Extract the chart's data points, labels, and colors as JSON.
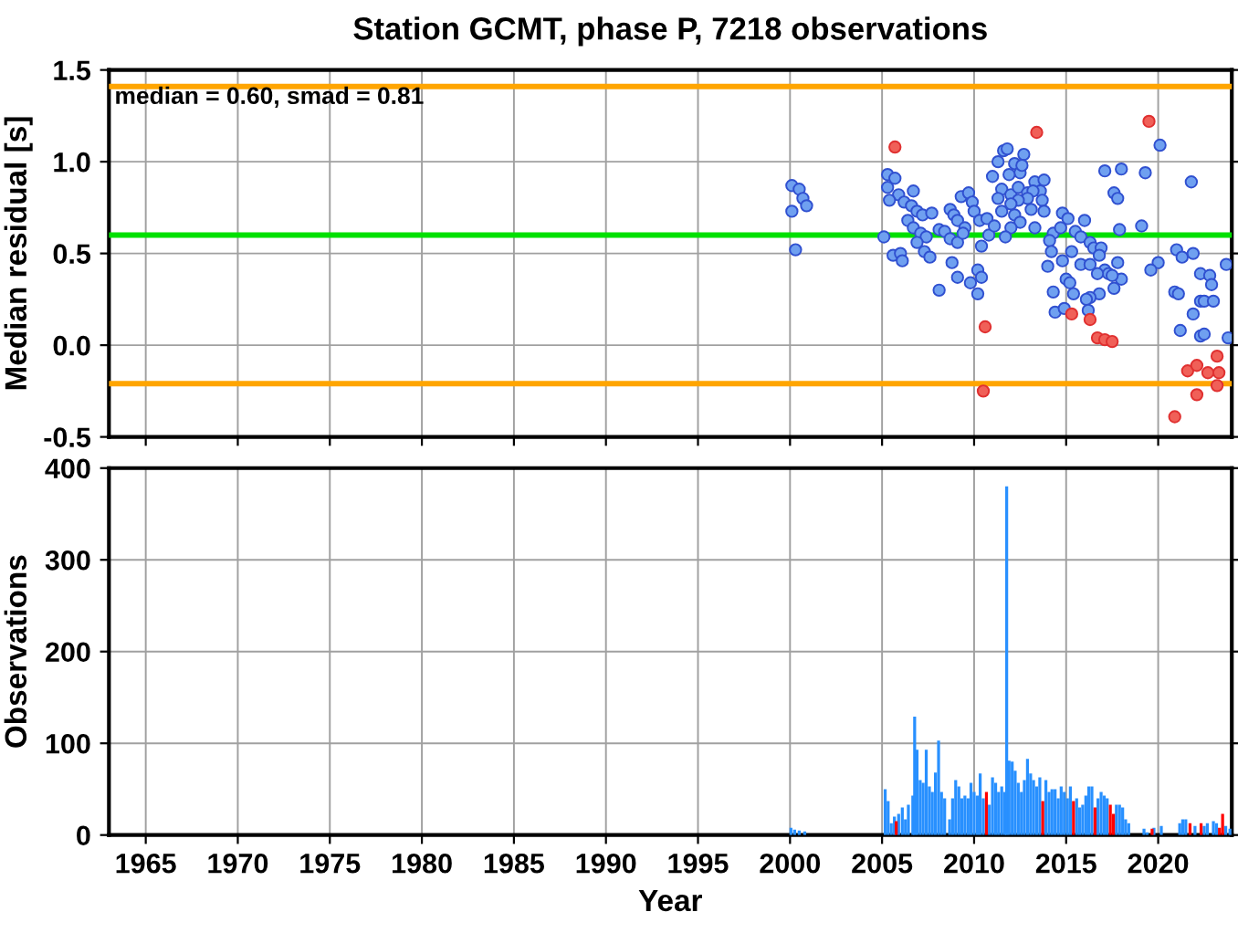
{
  "chart_data": [
    {
      "type": "scatter",
      "title": "Station GCMT, phase P, 7218 observations",
      "ylabel": "Median residual [s]",
      "xlim": [
        1963,
        2024
      ],
      "xticks": [
        1965,
        1970,
        1975,
        1980,
        1985,
        1990,
        1995,
        2000,
        2005,
        2010,
        2015,
        2020
      ],
      "ylim": [
        -0.5,
        1.5
      ],
      "yticks": [
        {
          "value": -0.5,
          "label": "-0.5"
        },
        {
          "value": 0,
          "label": "0.0"
        },
        {
          "value": 0.5,
          "label": "0.5"
        },
        {
          "value": 1,
          "label": "1.0"
        },
        {
          "value": 1.5,
          "label": "1.5"
        }
      ],
      "tick_labels": "y",
      "grid": true,
      "marker": "circle",
      "annotations": [
        "median = 0.60, smad = 0.81"
      ],
      "ref_lines": [
        {
          "axis": "y",
          "value": 1.41,
          "color": "#ffa500"
        },
        {
          "axis": "y",
          "value": 0.6,
          "color": "#00e000"
        },
        {
          "axis": "y",
          "value": -0.21,
          "color": "#ffa500"
        }
      ],
      "series": [
        {
          "color": "#6fa0f0",
          "x": [
            2000.1,
            2000.5,
            2000.7,
            2000.9,
            2000.1,
            2000.3,
            2005.3,
            2005.7,
            2005.3,
            2005.9,
            2005.4,
            2006.7,
            2006.2,
            2006.6,
            2006.9,
            2007.2,
            2006.4,
            2006.7,
            2007.1,
            2007.4,
            2006.9,
            2007.7,
            2005.1,
            2005.6,
            2006.0,
            2006.1,
            2007.3,
            2007.6,
            2008.1,
            2008.4,
            2008.7,
            2008.9,
            2008.7,
            2009.1,
            2009.1,
            2009.3,
            2009.7,
            2009.9,
            2010.0,
            2009.5,
            2009.4,
            2008.8,
            2009.1,
            2008.1,
            2010.2,
            2010.4,
            2009.8,
            2010.2,
            2010.3,
            2010.7,
            2010.4,
            2010.8,
            2011.1,
            2011.0,
            2011.3,
            2011.6,
            2011.8,
            2012.2,
            2012.5,
            2012.7,
            2012.6,
            2011.9,
            2011.5,
            2012.0,
            2012.4,
            2012.9,
            2013.3,
            2013.8,
            2013.6,
            2013.2,
            2012.9,
            2012.4,
            2012.0,
            2011.5,
            2011.3,
            2012.2,
            2012.5,
            2012.0,
            2011.7,
            2013.3,
            2013.7,
            2013.1,
            2013.8,
            2014.3,
            2014.7,
            2014.8,
            2015.1,
            2015.5,
            2016.0,
            2015.8,
            2016.3,
            2016.5,
            2016.9,
            2014.1,
            2014.2,
            2014.0,
            2014.8,
            2015.3,
            2015.8,
            2016.3,
            2016.8,
            2017.1,
            2017.3,
            2017.8,
            2018.0,
            2017.5,
            2016.7,
            2017.6,
            2016.8,
            2016.3,
            2016.1,
            2015.4,
            2015.0,
            2015.2,
            2014.3,
            2014.4,
            2014.9,
            2016.2,
            2017.1,
            2018.0,
            2019.3,
            2017.6,
            2017.8,
            2017.9,
            2019.1,
            2020.1,
            2020.0,
            2019.6,
            2021.0,
            2021.3,
            2021.9,
            2022.3,
            2022.8,
            2022.9,
            2020.9,
            2021.1,
            2022.3,
            2022.5,
            2023.0,
            2021.9,
            2021.2,
            2022.3,
            2022.5,
            2023.7,
            2023.8,
            2021.8
          ],
          "values": [
            0.87,
            0.85,
            0.8,
            0.76,
            0.73,
            0.52,
            0.93,
            0.91,
            0.86,
            0.82,
            0.79,
            0.84,
            0.78,
            0.76,
            0.73,
            0.71,
            0.68,
            0.64,
            0.61,
            0.59,
            0.56,
            0.72,
            0.59,
            0.49,
            0.5,
            0.46,
            0.51,
            0.48,
            0.63,
            0.62,
            0.74,
            0.71,
            0.58,
            0.56,
            0.68,
            0.81,
            0.83,
            0.78,
            0.73,
            0.64,
            0.61,
            0.45,
            0.37,
            0.3,
            0.41,
            0.37,
            0.34,
            0.28,
            0.68,
            0.69,
            0.54,
            0.6,
            0.65,
            0.92,
            1.0,
            1.06,
            1.07,
            0.99,
            0.94,
            1.04,
            0.98,
            0.93,
            0.85,
            0.82,
            0.86,
            0.83,
            0.89,
            0.9,
            0.84,
            0.84,
            0.8,
            0.79,
            0.77,
            0.73,
            0.8,
            0.71,
            0.67,
            0.64,
            0.59,
            0.64,
            0.79,
            0.74,
            0.73,
            0.61,
            0.64,
            0.72,
            0.69,
            0.62,
            0.68,
            0.59,
            0.56,
            0.53,
            0.53,
            0.57,
            0.51,
            0.43,
            0.46,
            0.51,
            0.44,
            0.44,
            0.49,
            0.41,
            0.39,
            0.45,
            0.36,
            0.38,
            0.39,
            0.31,
            0.28,
            0.26,
            0.25,
            0.28,
            0.36,
            0.34,
            0.29,
            0.18,
            0.2,
            0.19,
            0.95,
            0.96,
            0.94,
            0.83,
            0.8,
            0.63,
            0.65,
            1.09,
            0.45,
            0.41,
            0.52,
            0.48,
            0.5,
            0.39,
            0.38,
            0.33,
            0.29,
            0.28,
            0.24,
            0.24,
            0.24,
            0.17,
            0.08,
            0.05,
            0.06,
            0.44,
            0.04,
            0.89
          ]
        },
        {
          "color": "#f06058",
          "x": [
            2005.7,
            2013.4,
            2019.5,
            2010.6,
            2010.5,
            2015.3,
            2016.3,
            2016.7,
            2017.1,
            2017.5,
            2020.9,
            2021.6,
            2022.1,
            2022.7,
            2023.3,
            2023.2,
            2022.1,
            2023.2
          ],
          "values": [
            1.08,
            1.16,
            1.22,
            0.1,
            -0.25,
            0.17,
            0.14,
            0.04,
            0.03,
            0.02,
            -0.39,
            -0.14,
            -0.11,
            -0.15,
            -0.15,
            -0.06,
            -0.27,
            -0.22
          ]
        }
      ]
    },
    {
      "type": "bar",
      "xlabel": "Year",
      "ylabel": "Observations",
      "xlim": [
        1963,
        2024
      ],
      "xticks": [
        1965,
        1970,
        1975,
        1980,
        1985,
        1990,
        1995,
        2000,
        2005,
        2010,
        2015,
        2020
      ],
      "ylim": [
        0,
        400
      ],
      "yticks": [
        0,
        100,
        200,
        300,
        400
      ],
      "grid": true,
      "series": [
        {
          "color": "#2890ff",
          "x": [
            2000.05,
            2000.25,
            2000.5,
            2000.8,
            2005.17,
            2005.33,
            2005.5,
            2005.67,
            2005.9,
            2006.1,
            2006.27,
            2006.43,
            2006.67,
            2006.77,
            2006.9,
            2007.07,
            2007.23,
            2007.4,
            2007.57,
            2007.73,
            2007.9,
            2008.07,
            2008.23,
            2008.4,
            2008.67,
            2008.83,
            2009.0,
            2009.17,
            2009.33,
            2009.5,
            2009.67,
            2009.83,
            2010.0,
            2010.17,
            2010.33,
            2010.5,
            2010.83,
            2011.0,
            2011.17,
            2011.33,
            2011.5,
            2011.67,
            2011.77,
            2011.9,
            2012.07,
            2012.23,
            2012.4,
            2012.57,
            2012.73,
            2012.9,
            2013.07,
            2013.23,
            2013.4,
            2013.57,
            2013.9,
            2014.07,
            2014.23,
            2014.4,
            2014.57,
            2014.73,
            2014.9,
            2015.07,
            2015.23,
            2015.57,
            2015.73,
            2015.9,
            2016.07,
            2016.23,
            2016.4,
            2016.73,
            2016.9,
            2017.07,
            2017.23,
            2017.73,
            2017.9,
            2018.07,
            2018.23,
            2018.4,
            2019.23,
            2019.4,
            2019.77,
            2020.17,
            2021.17,
            2021.33,
            2021.5,
            2022.0,
            2022.5,
            2022.67,
            2023.0,
            2023.17,
            2023.67,
            2023.9
          ],
          "values": [
            8,
            6,
            5,
            4,
            50,
            37,
            13,
            20,
            23,
            30,
            17,
            33,
            43,
            129,
            93,
            60,
            57,
            93,
            53,
            47,
            68,
            103,
            47,
            40,
            17,
            40,
            60,
            53,
            40,
            43,
            40,
            57,
            47,
            43,
            67,
            40,
            33,
            63,
            57,
            47,
            53,
            47,
            380,
            81,
            80,
            70,
            57,
            47,
            60,
            83,
            67,
            60,
            53,
            63,
            60,
            47,
            50,
            50,
            40,
            53,
            47,
            40,
            53,
            40,
            30,
            33,
            43,
            53,
            53,
            40,
            47,
            43,
            40,
            33,
            33,
            30,
            17,
            13,
            7,
            3,
            8,
            10,
            13,
            17,
            17,
            10,
            10,
            13,
            15,
            13,
            10,
            7
          ]
        },
        {
          "color": "#ff0000",
          "x": [
            2005.77,
            2010.67,
            2013.73,
            2015.4,
            2016.57,
            2017.4,
            2017.57,
            2019.67,
            2021.73,
            2022.33,
            2023.33,
            2023.5
          ],
          "values": [
            15,
            47,
            37,
            37,
            30,
            33,
            23,
            7,
            13,
            13,
            8,
            23
          ]
        }
      ]
    }
  ]
}
